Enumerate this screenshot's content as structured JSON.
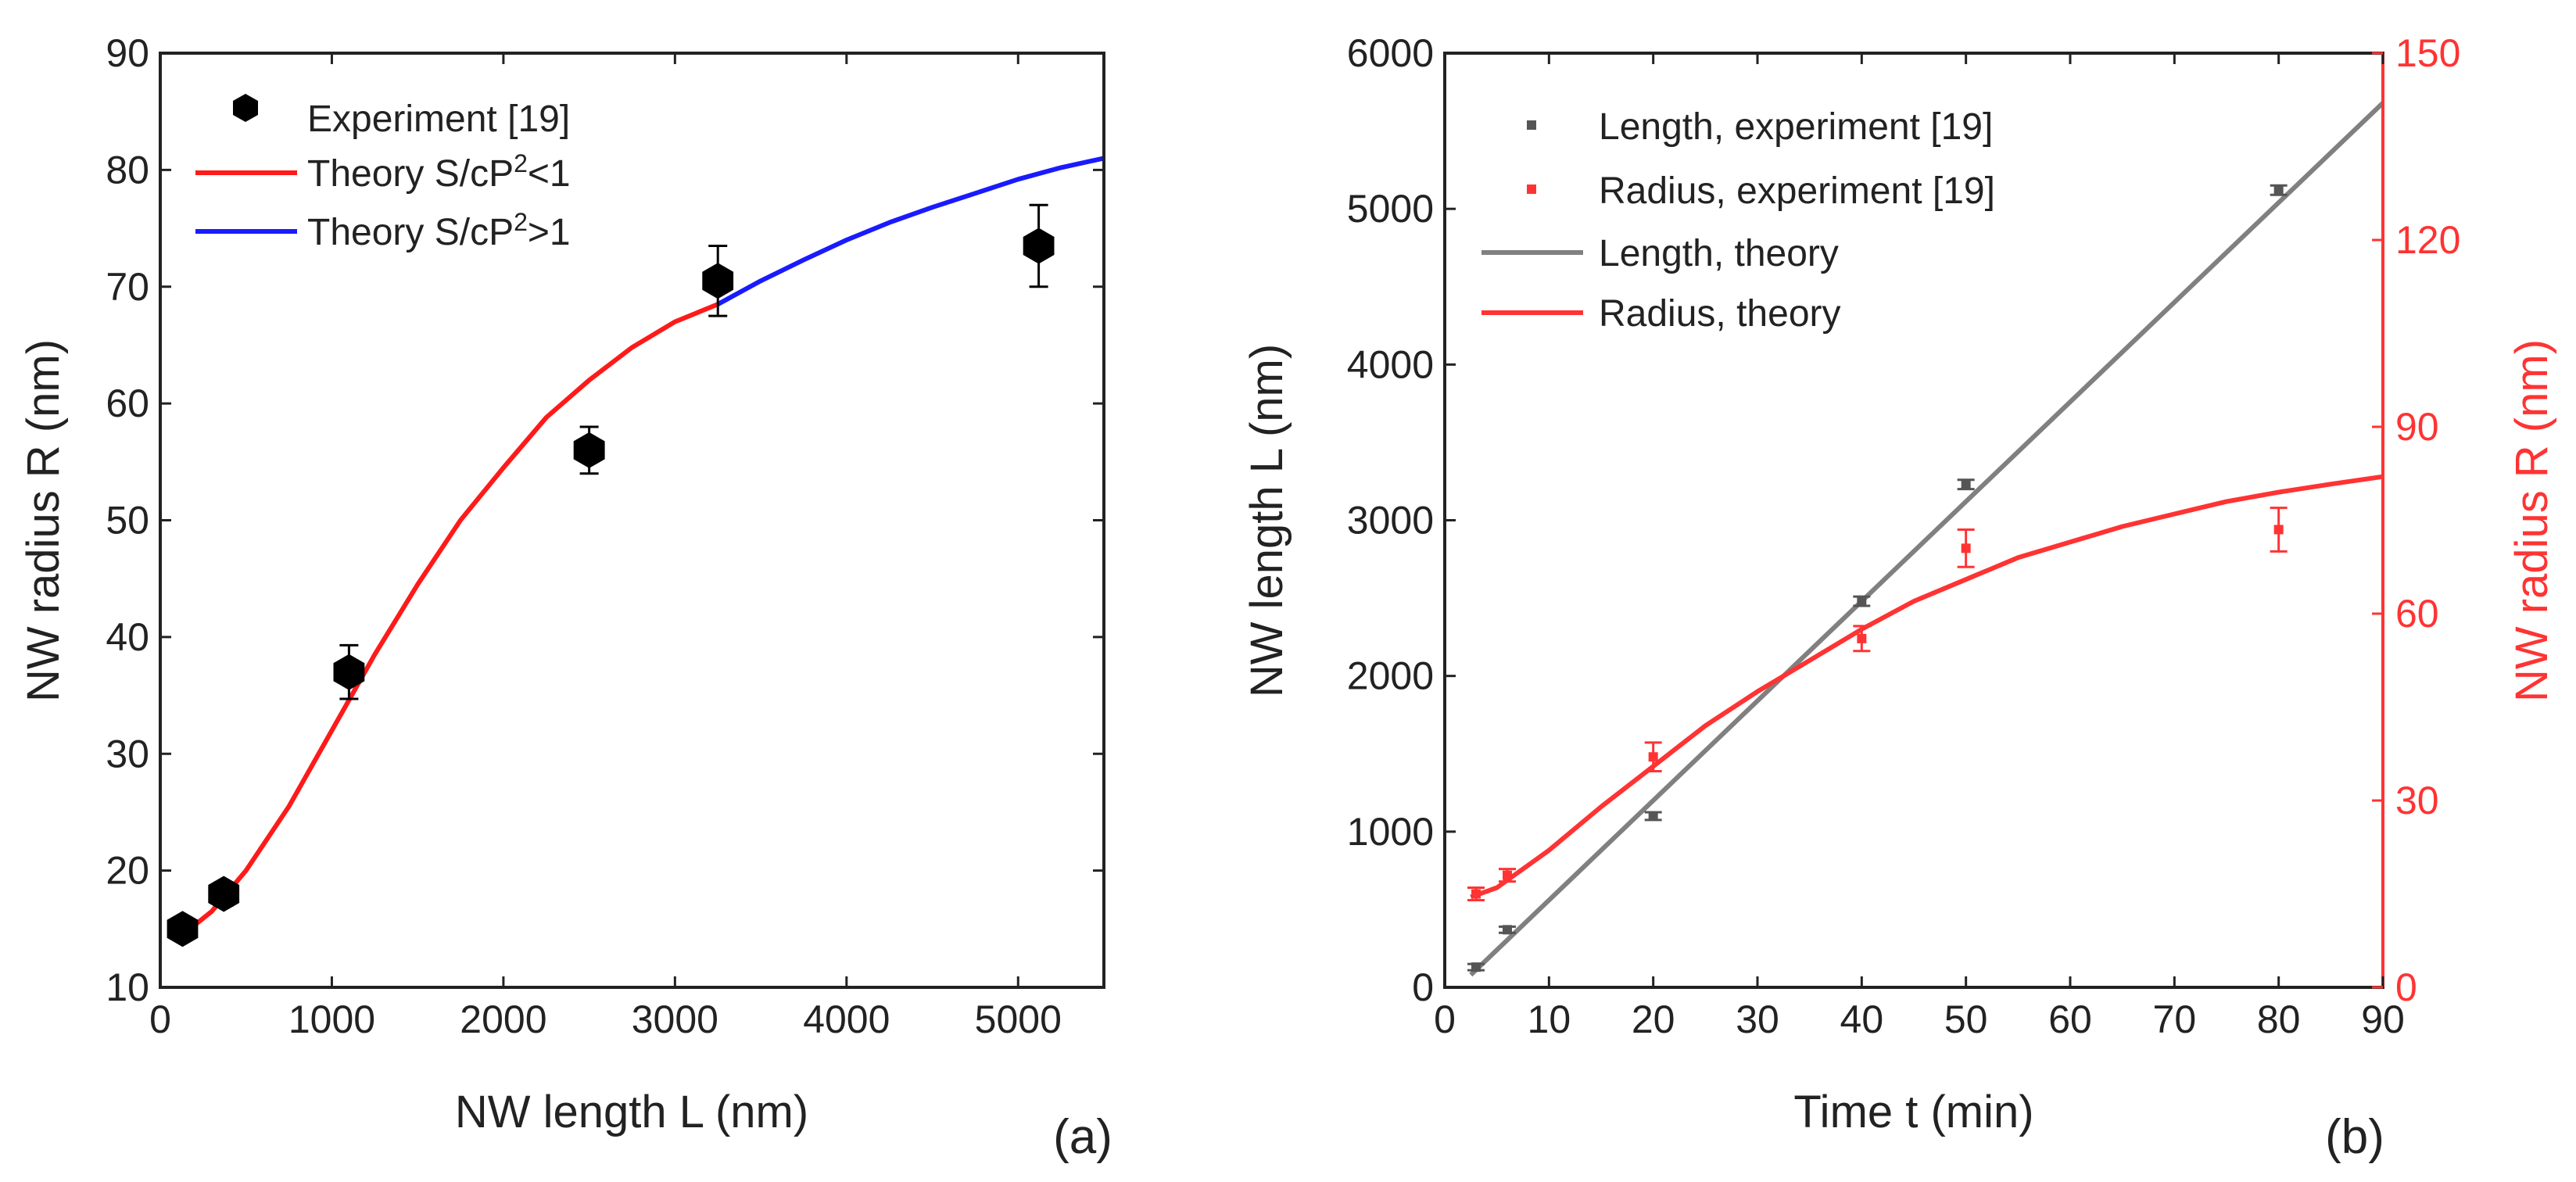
{
  "chart_data": [
    {
      "panel": "a",
      "type": "scatter",
      "panel_label": "(a)",
      "xlabel": "NW length L (nm)",
      "ylabel": "NW radius R (nm)",
      "xlim": [
        0,
        5500
      ],
      "ylim": [
        10,
        90
      ],
      "xticks": [
        0,
        1000,
        2000,
        3000,
        4000,
        5000
      ],
      "yticks": [
        10,
        20,
        30,
        40,
        50,
        60,
        70,
        80,
        90
      ],
      "legend_position": "top-left",
      "legend": [
        "Experiment [19]",
        "Theory S/cP",
        "Theory S/cP"
      ],
      "legend_sup": "2",
      "legend_ineq": [
        "<1",
        ">1"
      ],
      "series": [
        {
          "name": "Experiment [19]",
          "kind": "points",
          "color": "#000000",
          "x": [
            130,
            370,
            1100,
            2500,
            3250,
            5120
          ],
          "y": [
            15,
            18,
            37,
            56,
            70.5,
            73.5
          ],
          "yerr": [
            0.8,
            1.0,
            2.3,
            2.0,
            3.0,
            3.5
          ]
        },
        {
          "name": "Theory S/cP2<1",
          "kind": "line",
          "color": "#ff1a1a",
          "x": [
            130,
            300,
            500,
            750,
            1000,
            1250,
            1500,
            1750,
            2000,
            2250,
            2500,
            2750,
            3000,
            3250
          ],
          "y": [
            14.5,
            16.5,
            20,
            25.5,
            32,
            38.5,
            44.5,
            50,
            54.5,
            58.8,
            62,
            64.8,
            67,
            68.5
          ]
        },
        {
          "name": "Theory S/cP2>1",
          "kind": "line",
          "color": "#1a1aff",
          "x": [
            3250,
            3500,
            3750,
            4000,
            4250,
            4500,
            4750,
            5000,
            5250,
            5500
          ],
          "y": [
            68.5,
            70.5,
            72.3,
            74,
            75.5,
            76.8,
            78,
            79.2,
            80.2,
            81
          ]
        }
      ]
    },
    {
      "panel": "b",
      "type": "scatter",
      "panel_label": "(b)",
      "xlabel": "Time t (min)",
      "ylabel": "NW length L (nm)",
      "y2label": "NW radius R (nm)",
      "xlim": [
        0,
        90
      ],
      "ylim": [
        0,
        6000
      ],
      "y2lim": [
        0,
        150
      ],
      "xticks": [
        0,
        10,
        20,
        30,
        40,
        50,
        60,
        70,
        80,
        90
      ],
      "yticks": [
        0,
        1000,
        2000,
        3000,
        4000,
        5000,
        6000
      ],
      "y2ticks": [
        0,
        30,
        60,
        90,
        120,
        150
      ],
      "y2color": "#ff3333",
      "legend_position": "top-left",
      "legend": [
        "Length, experiment [19]",
        "Radius, experiment [19]",
        "Length, theory",
        "Radius, theory"
      ],
      "series": [
        {
          "name": "Length, experiment [19]",
          "kind": "points",
          "axis": "left",
          "color": "#555555",
          "x": [
            3,
            6,
            20,
            40,
            50,
            80
          ],
          "y": [
            130,
            370,
            1100,
            2480,
            3230,
            5120
          ],
          "yerr": [
            20,
            20,
            25,
            30,
            30,
            30
          ]
        },
        {
          "name": "Radius, experiment [19]",
          "kind": "points",
          "axis": "right",
          "color": "#ff3333",
          "x": [
            3,
            6,
            20,
            40,
            50,
            80
          ],
          "y": [
            15,
            18,
            37,
            56,
            70.5,
            73.5
          ],
          "yerr": [
            1.0,
            1.0,
            2.3,
            2.0,
            3.0,
            3.5
          ]
        },
        {
          "name": "Length, theory",
          "kind": "line",
          "axis": "left",
          "color": "#808080",
          "x": [
            2.5,
            90
          ],
          "y": [
            80,
            5680
          ]
        },
        {
          "name": "Radius, theory",
          "kind": "line",
          "axis": "right",
          "color": "#ff3333",
          "x": [
            2.5,
            5,
            10,
            15,
            20,
            25,
            30,
            35,
            40,
            45,
            50,
            55,
            60,
            65,
            70,
            75,
            80,
            85,
            90
          ],
          "y": [
            14.5,
            16,
            22,
            29,
            35.5,
            42,
            47.5,
            52.5,
            57.5,
            62,
            65.5,
            69,
            71.5,
            74,
            76,
            78,
            79.5,
            80.8,
            82
          ]
        }
      ]
    }
  ]
}
